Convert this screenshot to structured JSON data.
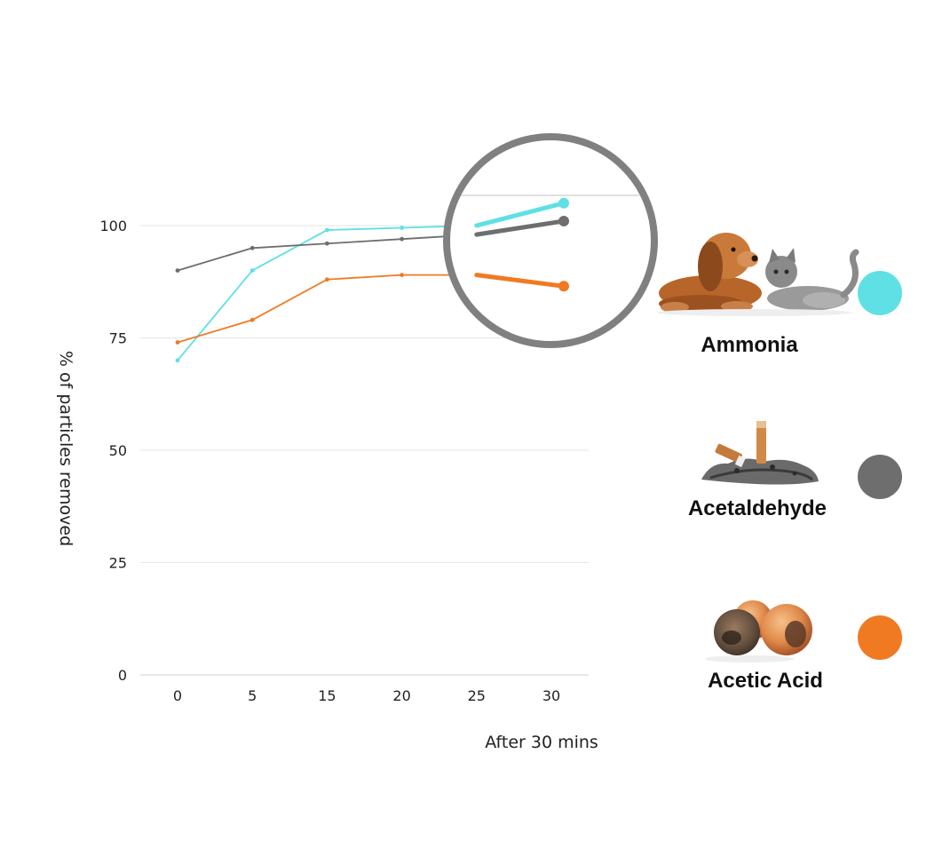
{
  "chart_data": {
    "type": "line",
    "xlabel": "After 30 mins",
    "ylabel": "% of particles removed",
    "categories": [
      "0",
      "5",
      "15",
      "20",
      "25",
      "30"
    ],
    "y_ticks": [
      0,
      25,
      50,
      75,
      100
    ],
    "ylim": [
      0,
      100
    ],
    "grid": true,
    "legend_position": "right",
    "series": [
      {
        "name": "Ammonia",
        "color": "#5ee0e4",
        "icon": "dog-and-cat-icon",
        "values": [
          70,
          90,
          99,
          99.5,
          100,
          105
        ]
      },
      {
        "name": "Acetaldehyde",
        "color": "#6e6e6e",
        "icon": "cigarette-ash-icon",
        "values": [
          90,
          95,
          96,
          97,
          98,
          101
        ]
      },
      {
        "name": "Acetic Acid",
        "color": "#f07a22",
        "icon": "rotten-fruit-icon",
        "values": [
          74,
          79,
          88,
          89,
          89,
          86.5
        ]
      }
    ],
    "annotation": {
      "type": "magnifier",
      "target_category": "30"
    }
  }
}
